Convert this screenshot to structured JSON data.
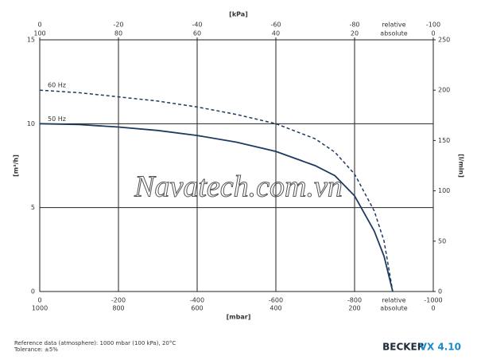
{
  "chart_data": {
    "type": "line",
    "xlabel": "[mbar]",
    "ylabel": "[m³/h]",
    "y2label": "[l/min]",
    "x2label": "[kPa]",
    "xlim": [
      0,
      -1000
    ],
    "xticks": [
      0,
      -200,
      -400,
      -600,
      -800,
      -1000
    ],
    "xticks_absolute": [
      1000,
      800,
      600,
      400,
      200,
      0
    ],
    "x2lim": [
      0,
      -100
    ],
    "x2ticks": [
      0,
      -20,
      -40,
      -60,
      -80,
      -100
    ],
    "x2ticks_absolute": [
      100,
      80,
      60,
      40,
      20,
      0
    ],
    "scale_names": [
      "relative",
      "absolute"
    ],
    "ylim": [
      0,
      15
    ],
    "yticks": [
      0,
      5,
      10,
      15
    ],
    "y2lim": [
      0,
      250
    ],
    "y2ticks": [
      0,
      50,
      100,
      150,
      200,
      250
    ],
    "grid": true,
    "series": [
      {
        "name": "50 Hz",
        "color": "#1e3a5f",
        "dashed": false,
        "x": [
          0,
          -100,
          -200,
          -300,
          -400,
          -500,
          -600,
          -700,
          -750,
          -800,
          -850,
          -875,
          -897
        ],
        "values": [
          10,
          9.95,
          9.8,
          9.6,
          9.3,
          8.9,
          8.35,
          7.5,
          6.9,
          5.7,
          3.6,
          2.1,
          0
        ]
      },
      {
        "name": "60 Hz",
        "color": "#1e3a5f",
        "dashed": true,
        "x": [
          0,
          -100,
          -200,
          -300,
          -400,
          -500,
          -600,
          -700,
          -750,
          -800,
          -850,
          -875,
          -897
        ],
        "values": [
          12,
          11.85,
          11.6,
          11.35,
          11.0,
          10.55,
          10.0,
          9.1,
          8.3,
          7.0,
          4.8,
          3.0,
          0
        ]
      }
    ],
    "watermark": "Navatech.com.vn",
    "notes": [
      "Reference data (atmosphere): 1000 mbar (100 kPa), 20°C",
      "Tolerance: ±5%"
    ],
    "brand": "BECKER",
    "model": "VX 4.10"
  }
}
